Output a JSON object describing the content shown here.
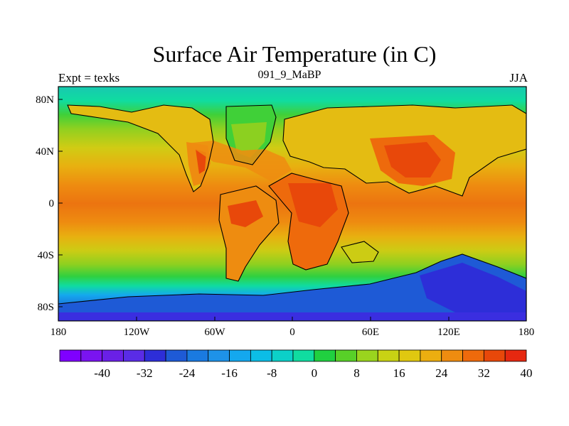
{
  "title": "Surface Air Temperature (in C)",
  "left_label": "Expt = texks",
  "center_label": "091_9_MaBP",
  "right_label": "JJA",
  "x_ticks": [
    "180",
    "120W",
    "60W",
    "0",
    "60E",
    "120E",
    "180"
  ],
  "y_ticks": [
    "80N",
    "40N",
    "0",
    "40S",
    "80S"
  ],
  "colorbar": {
    "colors": [
      "#7f00ff",
      "#7a14f0",
      "#6a20e6",
      "#5a2ce6",
      "#2d2ed8",
      "#1e5ad6",
      "#1a7ae0",
      "#1e92e8",
      "#14a8ee",
      "#0cbde6",
      "#0cd0c8",
      "#10dca0",
      "#20d040",
      "#58d028",
      "#9ad41e",
      "#c8d214",
      "#e0c810",
      "#ecae10",
      "#ee8c10",
      "#ee6a0c",
      "#e8480a",
      "#e62810"
    ],
    "labels": [
      "-40",
      "-32",
      "-24",
      "-16",
      "-8",
      "0",
      "8",
      "16",
      "24",
      "32",
      "40"
    ]
  }
}
